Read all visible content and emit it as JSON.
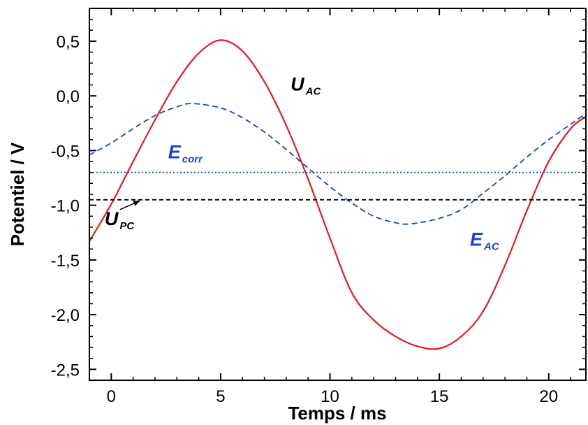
{
  "chart_data": {
    "type": "line",
    "xlabel": "Temps / ms",
    "ylabel": "Potentiel / V",
    "xlim": [
      -1,
      21.7
    ],
    "ylim": [
      -2.6,
      0.8
    ],
    "xticks": [
      0,
      5,
      10,
      15,
      20
    ],
    "xtick_labels": [
      "0",
      "5",
      "10",
      "15",
      "20"
    ],
    "yticks": [
      0.5,
      0.0,
      -0.5,
      -1.0,
      -1.5,
      -2.0,
      -2.5
    ],
    "ytick_labels": [
      "0,5",
      "0,0",
      "-0,5",
      "-1,0",
      "-1,5",
      "-2,0",
      "-2,5"
    ],
    "grid": false,
    "series": [
      {
        "name": "U",
        "subscript": "AC",
        "style": "solid",
        "color": "#e8191f",
        "x": [
          -1,
          0,
          1,
          2,
          3,
          4,
          5,
          6,
          7,
          8,
          9,
          10,
          11,
          12,
          13,
          14,
          15,
          16,
          17,
          18,
          19,
          20,
          21,
          21.7
        ],
        "y": [
          -1.33,
          -0.99,
          -0.6,
          -0.22,
          0.13,
          0.39,
          0.51,
          0.41,
          0.13,
          -0.27,
          -0.76,
          -1.3,
          -1.8,
          -2.05,
          -2.2,
          -2.29,
          -2.31,
          -2.2,
          -1.97,
          -1.55,
          -1.05,
          -0.6,
          -0.3,
          -0.19
        ]
      },
      {
        "name": "E",
        "subscript": "AC",
        "style": "dashed",
        "color": "#1a3fd6",
        "x": [
          -1,
          0,
          1,
          2,
          3,
          3.7,
          5,
          6,
          7,
          8,
          9,
          10,
          11,
          12,
          13,
          13.7,
          15,
          16,
          17,
          18,
          19,
          20,
          21,
          21.7
        ],
        "y": [
          -0.54,
          -0.43,
          -0.3,
          -0.18,
          -0.1,
          -0.07,
          -0.11,
          -0.2,
          -0.33,
          -0.49,
          -0.66,
          -0.83,
          -0.98,
          -1.1,
          -1.16,
          -1.17,
          -1.12,
          -1.04,
          -0.89,
          -0.73,
          -0.56,
          -0.4,
          -0.26,
          -0.16
        ]
      },
      {
        "name": "E",
        "subscript": "corr",
        "style": "dotted",
        "color": "#1a3fd6",
        "x": [
          -1,
          21.7
        ],
        "y": [
          -0.7,
          -0.7
        ]
      },
      {
        "name": "U",
        "subscript": "PC",
        "style": "dashed",
        "color": "#000000",
        "x": [
          -1,
          21.7
        ],
        "y": [
          -0.95,
          -0.95
        ]
      }
    ],
    "annotations": [
      {
        "text": "U",
        "subscript": "AC",
        "color": "#000000",
        "x": 8.2,
        "y": 0.05,
        "target": null
      },
      {
        "text": "E",
        "subscript": "corr",
        "color": "#1a3fd6",
        "x": 2.6,
        "y": -0.57,
        "target": null
      },
      {
        "text": "U",
        "subscript": "PC",
        "color": "#000000",
        "x": -0.3,
        "y": -1.18,
        "target": [
          1.3,
          -0.96
        ]
      },
      {
        "text": "E",
        "subscript": "AC",
        "color": "#1a3fd6",
        "x": 16.4,
        "y": -1.37,
        "target": null
      }
    ]
  }
}
